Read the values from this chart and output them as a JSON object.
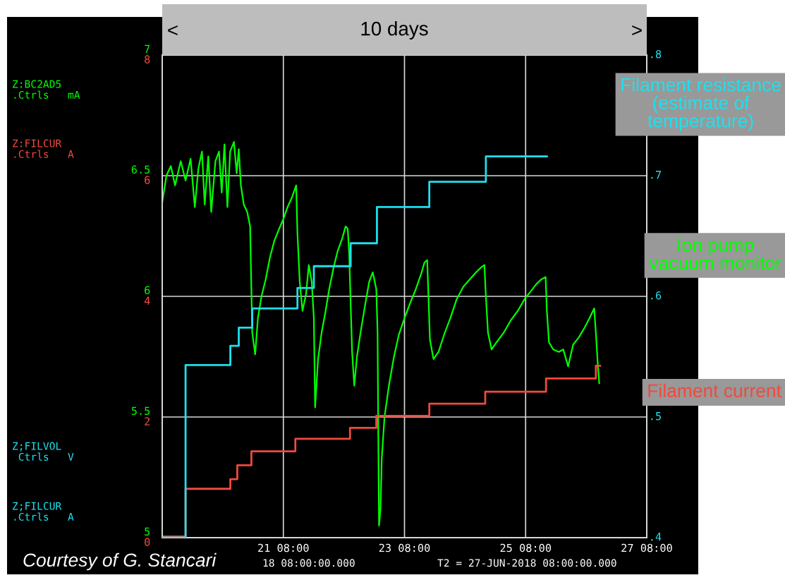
{
  "chart_data": {
    "type": "line",
    "xlim": [
      "2018-06-19T08:00",
      "2018-06-27T08:00"
    ],
    "xticks": [
      {
        "value": "2018-06-21T08:00",
        "label": "21 08:00"
      },
      {
        "value": "2018-06-23T08:00",
        "label": "23 08:00"
      },
      {
        "value": "2018-06-25T08:00",
        "label": "25 08:00"
      },
      {
        "value": "2018-06-27T08:00",
        "label": "27 08:00"
      }
    ],
    "ylim": [
      5,
      7
    ],
    "yticks": [
      5,
      5.5,
      6,
      6.5,
      7
    ],
    "y2lim": [
      0,
      8
    ],
    "y2ticks": [
      0,
      2,
      4,
      6,
      8
    ],
    "y3lim": [
      0.4,
      0.8
    ],
    "y3ticks": [
      {
        "value": 0.4,
        "label": ".4"
      },
      {
        "value": 0.5,
        "label": ".5"
      },
      {
        "value": 0.6,
        "label": ".6"
      },
      {
        "value": 0.7,
        "label": ".7"
      },
      {
        "value": 0.8,
        "label": ".8"
      }
    ],
    "grid": true,
    "legend": false,
    "series": [
      {
        "name": "Ion pump\nvacuum monitor",
        "axis": "y",
        "color": "#00ff00",
        "x": [
          "2018-06-19T08:00",
          "2018-06-19T09:40",
          "2018-06-19T11:25",
          "2018-06-19T13:05",
          "2018-06-19T15:20",
          "2018-06-19T17:15",
          "2018-06-19T19:15",
          "2018-06-19T20:55",
          "2018-06-19T22:20",
          "2018-06-19T23:45",
          "2018-06-20T00:50",
          "2018-06-20T02:15",
          "2018-06-20T03:25",
          "2018-06-20T05:05",
          "2018-06-20T06:30",
          "2018-06-20T07:35",
          "2018-06-20T08:40",
          "2018-06-20T09:50",
          "2018-06-20T10:55",
          "2018-06-20T12:25",
          "2018-06-20T13:30",
          "2018-06-20T14:20",
          "2018-06-20T15:10",
          "2018-06-20T16:20",
          "2018-06-20T17:40",
          "2018-06-20T18:50",
          "2018-06-20T19:40",
          "2018-06-20T20:50",
          "2018-06-20T21:55",
          "2018-06-20T23:20",
          "2018-06-21T01:00",
          "2018-06-21T02:40",
          "2018-06-21T04:25",
          "2018-06-21T06:20",
          "2018-06-21T08:00",
          "2018-06-21T09:40",
          "2018-06-21T11:25",
          "2018-06-21T13:05",
          "2018-06-21T13:35",
          "2018-06-21T14:30",
          "2018-06-21T15:35",
          "2018-06-21T17:00",
          "2018-06-21T18:05",
          "2018-06-21T19:15",
          "2018-06-21T20:05",
          "2018-06-21T20:35",
          "2018-06-21T21:45",
          "2018-06-21T23:10",
          "2018-06-22T00:35",
          "2018-06-22T02:10",
          "2018-06-22T03:55",
          "2018-06-22T05:35",
          "2018-06-22T07:20",
          "2018-06-22T08:40",
          "2018-06-22T09:30",
          "2018-06-22T10:05",
          "2018-06-22T10:40",
          "2018-06-22T11:15",
          "2018-06-22T12:05",
          "2018-06-22T13:10",
          "2018-06-22T14:35",
          "2018-06-22T16:20",
          "2018-06-22T18:00",
          "2018-06-22T19:25",
          "2018-06-22T20:50",
          "2018-06-22T21:20",
          "2018-06-22T21:35",
          "2018-06-22T21:55",
          "2018-06-22T22:30",
          "2018-06-22T23:00",
          "2018-06-23T00:05",
          "2018-06-23T01:50",
          "2018-06-23T03:50",
          "2018-06-23T05:45",
          "2018-06-23T08:00",
          "2018-06-23T10:10",
          "2018-06-23T12:30",
          "2018-06-23T14:30",
          "2018-06-23T15:55",
          "2018-06-23T17:00",
          "2018-06-23T17:30",
          "2018-06-23T18:05",
          "2018-06-23T19:30",
          "2018-06-23T21:30",
          "2018-06-23T23:40",
          "2018-06-24T02:10",
          "2018-06-24T04:45",
          "2018-06-24T07:20",
          "2018-06-24T09:50",
          "2018-06-24T12:25",
          "2018-06-24T14:20",
          "2018-06-24T15:40",
          "2018-06-24T16:15",
          "2018-06-24T17:05",
          "2018-06-24T18:30",
          "2018-06-24T20:30",
          "2018-06-24T23:20",
          "2018-06-25T02:05",
          "2018-06-25T04:55",
          "2018-06-25T07:40",
          "2018-06-25T10:00",
          "2018-06-25T12:10",
          "2018-06-25T14:10",
          "2018-06-25T15:55",
          "2018-06-25T16:25",
          "2018-06-25T17:15",
          "2018-06-25T18:55",
          "2018-06-25T21:10",
          "2018-06-25T22:55",
          "2018-06-26T00:50",
          "2018-06-26T02:50",
          "2018-06-26T05:05",
          "2018-06-26T07:20",
          "2018-06-26T09:20",
          "2018-06-26T11:10",
          "2018-06-26T11:50",
          "2018-06-26T12:35",
          "2018-06-26T13:10"
        ],
        "values": [
          6.39,
          6.5,
          6.54,
          6.46,
          6.56,
          6.48,
          6.57,
          6.37,
          6.53,
          6.6,
          6.38,
          6.58,
          6.35,
          6.56,
          6.6,
          6.43,
          6.63,
          6.37,
          6.6,
          6.64,
          6.51,
          6.61,
          6.46,
          6.38,
          6.35,
          6.29,
          5.85,
          5.76,
          5.91,
          6.0,
          6.07,
          6.16,
          6.23,
          6.28,
          6.32,
          6.37,
          6.41,
          6.46,
          6.26,
          6.06,
          5.94,
          6.01,
          6.13,
          6.06,
          5.91,
          5.54,
          5.74,
          5.85,
          5.93,
          6.03,
          6.12,
          6.19,
          6.24,
          6.29,
          6.28,
          6.18,
          5.97,
          5.77,
          5.63,
          5.75,
          5.85,
          5.96,
          6.06,
          6.1,
          6.03,
          5.85,
          5.47,
          5.05,
          5.12,
          5.33,
          5.5,
          5.63,
          5.75,
          5.84,
          5.91,
          5.97,
          6.03,
          6.09,
          6.14,
          6.15,
          6.0,
          5.82,
          5.74,
          5.77,
          5.84,
          5.91,
          5.99,
          6.04,
          6.07,
          6.1,
          6.12,
          6.13,
          6.0,
          5.85,
          5.78,
          5.81,
          5.85,
          5.9,
          5.94,
          5.99,
          6.02,
          6.05,
          6.07,
          6.08,
          5.94,
          5.81,
          5.78,
          5.77,
          5.78,
          5.71,
          5.8,
          5.83,
          5.87,
          5.91,
          5.95,
          5.85,
          5.72,
          5.64
        ]
      },
      {
        "name": "Filament current",
        "type": "step",
        "axis": "y2",
        "color": "#f04a3c",
        "x": [
          "2018-06-19T08:00",
          "2018-06-19T17:15",
          "2018-06-20T11:00",
          "2018-06-20T13:45",
          "2018-06-20T19:20",
          "2018-06-21T12:45",
          "2018-06-22T10:25",
          "2018-06-22T20:50",
          "2018-06-23T17:50",
          "2018-06-24T16:00",
          "2018-06-25T16:05",
          "2018-06-26T11:50",
          "2018-06-26T13:30"
        ],
        "values": [
          0.02,
          0.81,
          0.97,
          1.2,
          1.43,
          1.64,
          1.82,
          2.02,
          2.22,
          2.42,
          2.64,
          2.85,
          2.85
        ]
      },
      {
        "name": "Filament resistance\n(estimate of\ntemperature)",
        "type": "step",
        "axis": "y3",
        "color": "#1ee0ee",
        "x": [
          "2018-06-19T08:00",
          "2018-06-19T17:15",
          "2018-06-20T11:00",
          "2018-06-20T14:20",
          "2018-06-20T19:40",
          "2018-06-21T13:35",
          "2018-06-21T20:05",
          "2018-06-22T10:40",
          "2018-06-22T21:05",
          "2018-06-23T17:50",
          "2018-06-24T16:15",
          "2018-06-25T16:25"
        ],
        "values": [
          0.4,
          0.543,
          0.559,
          0.574,
          0.59,
          0.607,
          0.625,
          0.644,
          0.674,
          0.695,
          0.716,
          0.716
        ]
      }
    ],
    "annotations": [
      "<",
      "10 days",
      ">",
      "Z:BC2AD5\n.Ctrls   mA",
      "Z:FILCUR\n.Ctrls   A",
      "Z;FILVOL\n Ctrls   V",
      "Z;FILCUR\n.Ctrls   A",
      "Courtesy of G. Stancari",
      "18 08:00:00.000",
      "T2 = 27-JUN-2018 08:00:00.000"
    ]
  }
}
